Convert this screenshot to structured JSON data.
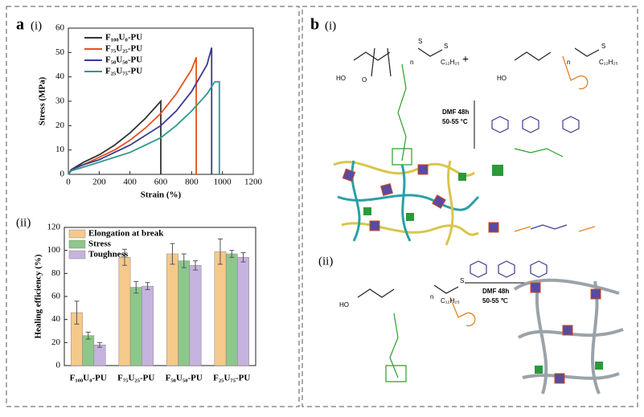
{
  "panels": {
    "a": "a",
    "a_i": "(i)",
    "a_ii": "(ii)",
    "b": "b",
    "b_i": "(i)",
    "b_ii": "(ii)"
  },
  "chart_data": [
    {
      "type": "line",
      "xlabel": "Strain (%)",
      "ylabel": "Stress (MPa)",
      "xlim": [
        0,
        1200
      ],
      "xticks": [
        0,
        200,
        400,
        600,
        800,
        1000,
        1200
      ],
      "ylim": [
        0,
        60
      ],
      "yticks": [
        0,
        10,
        20,
        30,
        40,
        50,
        60
      ],
      "series": [
        {
          "name": "F₁₀₀U₀-PU",
          "color": "#333333",
          "x": [
            0,
            20,
            100,
            200,
            300,
            400,
            500,
            600,
            600
          ],
          "values": [
            0,
            2,
            5,
            8,
            12,
            17,
            23,
            30,
            0
          ]
        },
        {
          "name": "F₇₅U₂₅-PU",
          "color": "#e8501e",
          "x": [
            0,
            20,
            100,
            200,
            300,
            400,
            500,
            600,
            700,
            800,
            830,
            830
          ],
          "values": [
            0,
            2,
            4,
            7,
            10,
            14,
            19,
            25,
            33,
            43,
            48,
            0
          ]
        },
        {
          "name": "F₅₀U₅₀-PU",
          "color": "#3c3a8f",
          "x": [
            0,
            20,
            100,
            200,
            300,
            400,
            500,
            600,
            700,
            800,
            900,
            930,
            930
          ],
          "values": [
            0,
            2,
            4,
            6,
            9,
            12,
            16,
            20,
            26,
            34,
            45,
            52,
            0
          ]
        },
        {
          "name": "F₂₅U₇₅-PU",
          "color": "#2a9a8f",
          "x": [
            0,
            20,
            100,
            200,
            300,
            400,
            500,
            600,
            700,
            800,
            900,
            950,
            980,
            980
          ],
          "values": [
            0,
            1.5,
            3,
            5,
            7,
            9,
            12,
            15,
            20,
            26,
            33,
            38,
            38,
            0
          ]
        }
      ]
    },
    {
      "type": "bar",
      "ylabel": "Healing efficiency (%)",
      "categories": [
        "F₁₀₀U₀-PU",
        "F₇₅U₂₅-PU",
        "F₅₀U₅₀-PU",
        "F₂₅U₇₅-PU"
      ],
      "ylim": [
        0,
        120
      ],
      "yticks": [
        0,
        20,
        40,
        60,
        80,
        100,
        120
      ],
      "series": [
        {
          "name": "Elongation at break",
          "color": "#f5c98a",
          "values": [
            46,
            94,
            97,
            99
          ],
          "errors": [
            10,
            7,
            9,
            11
          ]
        },
        {
          "name": "Stress",
          "color": "#8dc78a",
          "values": [
            26,
            68,
            91,
            97
          ],
          "errors": [
            3,
            5,
            6,
            3
          ]
        },
        {
          "name": "Toughness",
          "color": "#c6b2df",
          "values": [
            18,
            69,
            87,
            94
          ],
          "errors": [
            2,
            3,
            4,
            4
          ]
        }
      ]
    }
  ],
  "scheme": {
    "plus": "+",
    "cond1": "DMF 48h",
    "temp1": "50-55 °C",
    "cond2": "DMF 48h",
    "temp2": "50-55 ℃",
    "labels": [
      "HO",
      "O",
      "S",
      "S",
      "C₁₂H₂₅",
      "n",
      "HO",
      "S",
      "C₁₂H₂₅",
      "n",
      "HO",
      "S",
      "C₁₂H₂₅",
      "n"
    ]
  }
}
